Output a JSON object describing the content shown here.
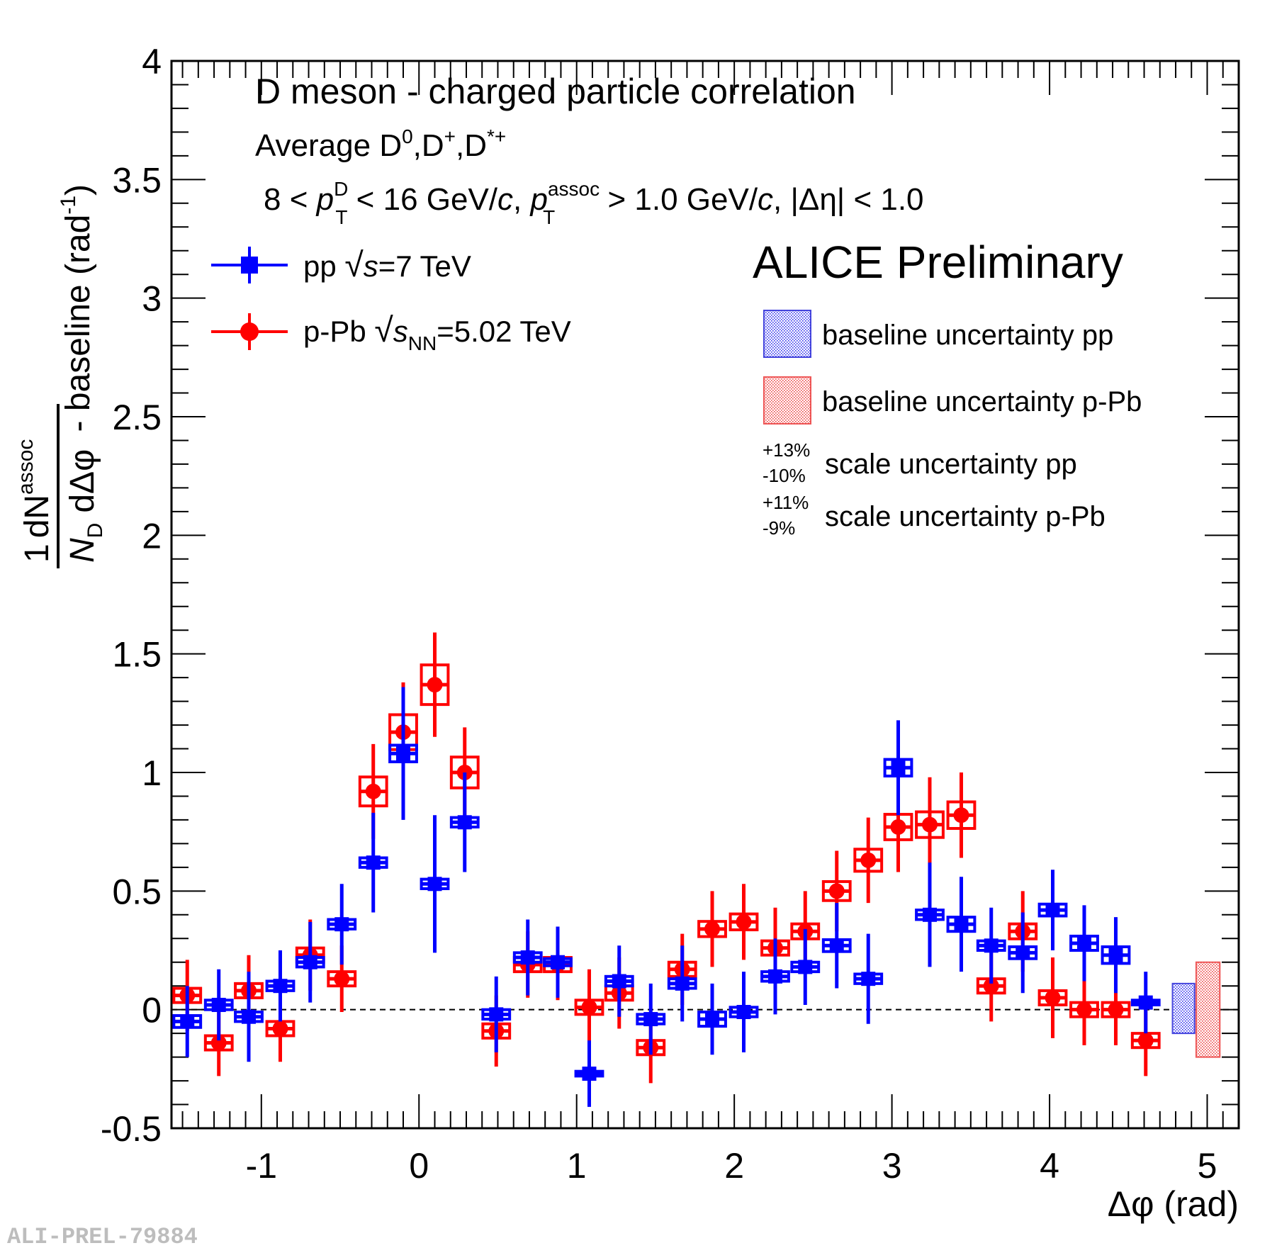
{
  "chart_data": {
    "type": "scatter",
    "title": "D meson  - charged particle correlation",
    "subtitle": {
      "avg": "Average D",
      "sup0": "0",
      "dplus": ",D",
      "plus": "+",
      "dstar": ",D",
      "starplus": "*+"
    },
    "kinematics": {
      "p1": "8 < ",
      "p": "p",
      "supD": "D",
      "subT": "T",
      "p2": " < 16 GeV/",
      "c": "c",
      "p3": ", ",
      "supAssoc": "assoc",
      "p4": " > 1.0 GeV/",
      "p5": ", |Δη| < 1.0"
    },
    "preliminary": "ALICE Preliminary",
    "xlabel": "Δφ (rad)",
    "ylabel": {
      "one": "1",
      "dN": "dN",
      "assoc": "assoc",
      "N": "N",
      "D": "D",
      "dphi": "dΔφ",
      "rest": "- baseline (rad",
      "exp": "-1",
      "close": ")"
    },
    "xlim": [
      -1.57,
      5.2
    ],
    "ylim": [
      -0.5,
      4
    ],
    "x_ticks": [
      "-1",
      "0",
      "1",
      "2",
      "3",
      "4",
      "5"
    ],
    "y_ticks": [
      "-0.5",
      "0",
      "0.5",
      "1",
      "1.5",
      "2",
      "2.5",
      "3",
      "3.5",
      "4"
    ],
    "reference_line": 0,
    "legend": {
      "pp": {
        "pre": "pp ",
        "s": "s",
        "post": "=7 TeV"
      },
      "ppb": {
        "pre": "p-Pb ",
        "s": "s",
        "sub": "NN",
        "post": "=5.02 TeV"
      },
      "box_pp": "baseline uncertainty pp",
      "box_ppb": "baseline uncertainty p-Pb",
      "scale_pp": {
        "up": "+13%",
        "down": "-10%",
        "text": "scale uncertainty pp"
      },
      "scale_ppb": {
        "up": "+11%",
        "down": "-9%",
        "text": "scale uncertainty p-Pb"
      }
    },
    "series": [
      {
        "name": "pp √s=7 TeV",
        "color": "#0000ff",
        "marker": "square",
        "x": [
          -1.47,
          -1.27,
          -1.08,
          -0.88,
          -0.69,
          -0.49,
          -0.29,
          -0.1,
          0.1,
          0.29,
          0.49,
          0.69,
          0.88,
          1.08,
          1.27,
          1.47,
          1.67,
          1.86,
          2.06,
          2.26,
          2.45,
          2.65,
          2.85,
          3.04,
          3.24,
          3.44,
          3.63,
          3.83,
          4.02,
          4.22,
          4.42,
          4.61
        ],
        "y": [
          -0.05,
          0.02,
          -0.03,
          0.1,
          0.2,
          0.36,
          0.62,
          1.08,
          0.53,
          0.79,
          -0.02,
          0.22,
          0.2,
          -0.27,
          0.12,
          -0.04,
          0.11,
          -0.04,
          -0.01,
          0.14,
          0.18,
          0.27,
          0.13,
          1.02,
          0.4,
          0.36,
          0.27,
          0.24,
          0.42,
          0.28,
          0.23,
          0.03
        ],
        "err": [
          0.15,
          0.15,
          0.19,
          0.15,
          0.17,
          0.17,
          0.21,
          0.28,
          0.29,
          0.21,
          0.16,
          0.16,
          0.15,
          0.14,
          0.15,
          0.15,
          0.16,
          0.15,
          0.17,
          0.16,
          0.16,
          0.18,
          0.19,
          0.2,
          0.22,
          0.2,
          0.16,
          0.17,
          0.17,
          0.16,
          0.16,
          0.13
        ],
        "syst": [
          0.025,
          0.02,
          0.02,
          0.02,
          0.02,
          0.02,
          0.02,
          0.035,
          0.02,
          0.02,
          0.02,
          0.02,
          0.015,
          0.01,
          0.02,
          0.02,
          0.02,
          0.03,
          0.02,
          0.02,
          0.02,
          0.025,
          0.02,
          0.035,
          0.02,
          0.03,
          0.02,
          0.025,
          0.025,
          0.03,
          0.035,
          0.01
        ]
      },
      {
        "name": "p-Pb √sNN=5.02 TeV",
        "color": "#ff0000",
        "marker": "circle",
        "x": [
          -1.47,
          -1.27,
          -1.08,
          -0.88,
          -0.69,
          -0.49,
          -0.29,
          -0.1,
          0.1,
          0.29,
          0.49,
          0.69,
          0.88,
          1.08,
          1.27,
          1.47,
          1.67,
          1.86,
          2.06,
          2.26,
          2.45,
          2.65,
          2.85,
          3.04,
          3.24,
          3.44,
          3.63,
          3.83,
          4.02,
          4.22,
          4.42,
          4.61
        ],
        "y": [
          0.06,
          -0.14,
          0.08,
          -0.08,
          0.23,
          0.13,
          0.92,
          1.17,
          1.37,
          1.0,
          -0.09,
          0.19,
          0.19,
          0.01,
          0.07,
          -0.16,
          0.17,
          0.34,
          0.37,
          0.26,
          0.33,
          0.5,
          0.63,
          0.77,
          0.78,
          0.82,
          0.1,
          0.33,
          0.05,
          0.0,
          0.0,
          -0.13
        ],
        "err": [
          0.15,
          0.14,
          0.15,
          0.14,
          0.15,
          0.14,
          0.2,
          0.21,
          0.22,
          0.19,
          0.15,
          0.14,
          0.15,
          0.16,
          0.15,
          0.15,
          0.15,
          0.16,
          0.16,
          0.17,
          0.17,
          0.17,
          0.18,
          0.19,
          0.2,
          0.18,
          0.15,
          0.17,
          0.17,
          0.15,
          0.15,
          0.15
        ]
      }
    ],
    "baseline_uncertainty_pp": [
      -0.1,
      0.11
    ],
    "baseline_uncertainty_ppb": [
      -0.2,
      0.2
    ]
  },
  "watermark": "ALI-PREL-79884"
}
